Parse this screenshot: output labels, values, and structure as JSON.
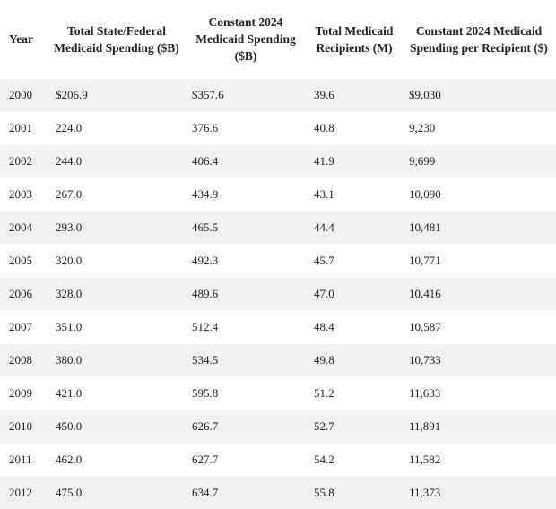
{
  "table": {
    "header": [
      "Year",
      "Total State/Federal Medicaid Spending ($B)",
      "Constant 2024 Medicaid Spending ($B)",
      "Total Medicaid Recipients (M)",
      "Constant 2024 Medicaid Spending per Recipient ($)"
    ],
    "rows": [
      [
        "2000",
        "$206.9",
        "$357.6",
        "39.6",
        "$9,030"
      ],
      [
        "2001",
        "224.0",
        "376.6",
        "40.8",
        "9,230"
      ],
      [
        "2002",
        "244.0",
        "406.4",
        "41.9",
        "9,699"
      ],
      [
        "2003",
        "267.0",
        "434.9",
        "43.1",
        "10,090"
      ],
      [
        "2004",
        "293.0",
        "465.5",
        "44.4",
        "10,481"
      ],
      [
        "2005",
        "320.0",
        "492.3",
        "45.7",
        "10,771"
      ],
      [
        "2006",
        "328.0",
        "489.6",
        "47.0",
        "10,416"
      ],
      [
        "2007",
        "351.0",
        "512.4",
        "48.4",
        "10,587"
      ],
      [
        "2008",
        "380.0",
        "534.5",
        "49.8",
        "10,733"
      ],
      [
        "2009",
        "421.0",
        "595.8",
        "51.2",
        "11,633"
      ],
      [
        "2010",
        "450.0",
        "626.7",
        "52.7",
        "11,891"
      ],
      [
        "2011",
        "462.0",
        "627.7",
        "54.2",
        "11,582"
      ],
      [
        "2012",
        "475.0",
        "634.7",
        "55.8",
        "11,373"
      ]
    ]
  }
}
